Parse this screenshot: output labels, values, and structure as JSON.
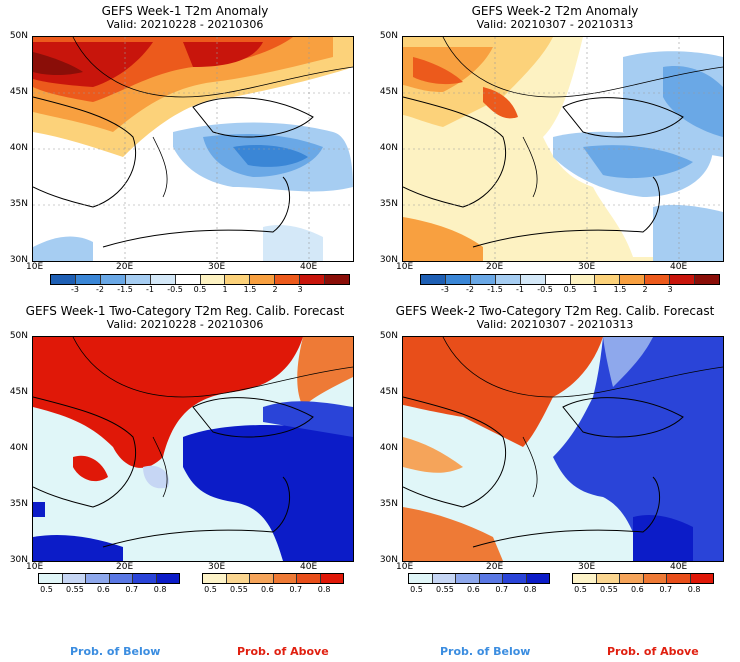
{
  "panels": [
    {
      "title": "GEFS Week-1 T2m Anomaly",
      "valid": "Valid: 20210228 - 20210306"
    },
    {
      "title": "GEFS Week-2 T2m Anomaly",
      "valid": "Valid: 20210307 - 20210313"
    },
    {
      "title": "GEFS Week-1 Two-Category T2m Reg. Calib. Forecast",
      "valid": "Valid: 20210228 - 20210306"
    },
    {
      "title": "GEFS Week-2 Two-Category T2m Reg. Calib. Forecast",
      "valid": "Valid: 20210307 - 20210313"
    }
  ],
  "axes": {
    "lat_labels": [
      "50N",
      "45N",
      "40N",
      "35N",
      "30N"
    ],
    "lon_labels": [
      "10E",
      "20E",
      "30E",
      "40E"
    ]
  },
  "anomaly_colorbar": {
    "ticks": [
      "-3",
      "-2",
      "-1.5",
      "-1",
      "-0.5",
      "0.5",
      "1",
      "1.5",
      "2",
      "3"
    ],
    "colors": [
      "#1e5fb4",
      "#3a86d6",
      "#6aa8e6",
      "#a6cdf2",
      "#d4e8f8",
      "#ffffff",
      "#fdf2c2",
      "#fcd27a",
      "#f8a040",
      "#ec5a1c",
      "#c8150c",
      "#8a0e08"
    ]
  },
  "prob_below": {
    "ticks": [
      "0.5",
      "0.55",
      "0.6",
      "0.7",
      "0.8"
    ],
    "colors": [
      "#e0f6f8",
      "#c6d6f4",
      "#8ea8ec",
      "#5a78e4",
      "#2a44d8",
      "#0c1cc8"
    ],
    "label": "Prob. of Below",
    "label_color": "#3b8de0"
  },
  "prob_above": {
    "ticks": [
      "0.5",
      "0.55",
      "0.6",
      "0.7",
      "0.8"
    ],
    "colors": [
      "#fdf3c8",
      "#fbd690",
      "#f5a45a",
      "#ee7a36",
      "#e84e1a",
      "#e01808"
    ],
    "label": "Prob. of Above",
    "label_color": "#e02010"
  }
}
